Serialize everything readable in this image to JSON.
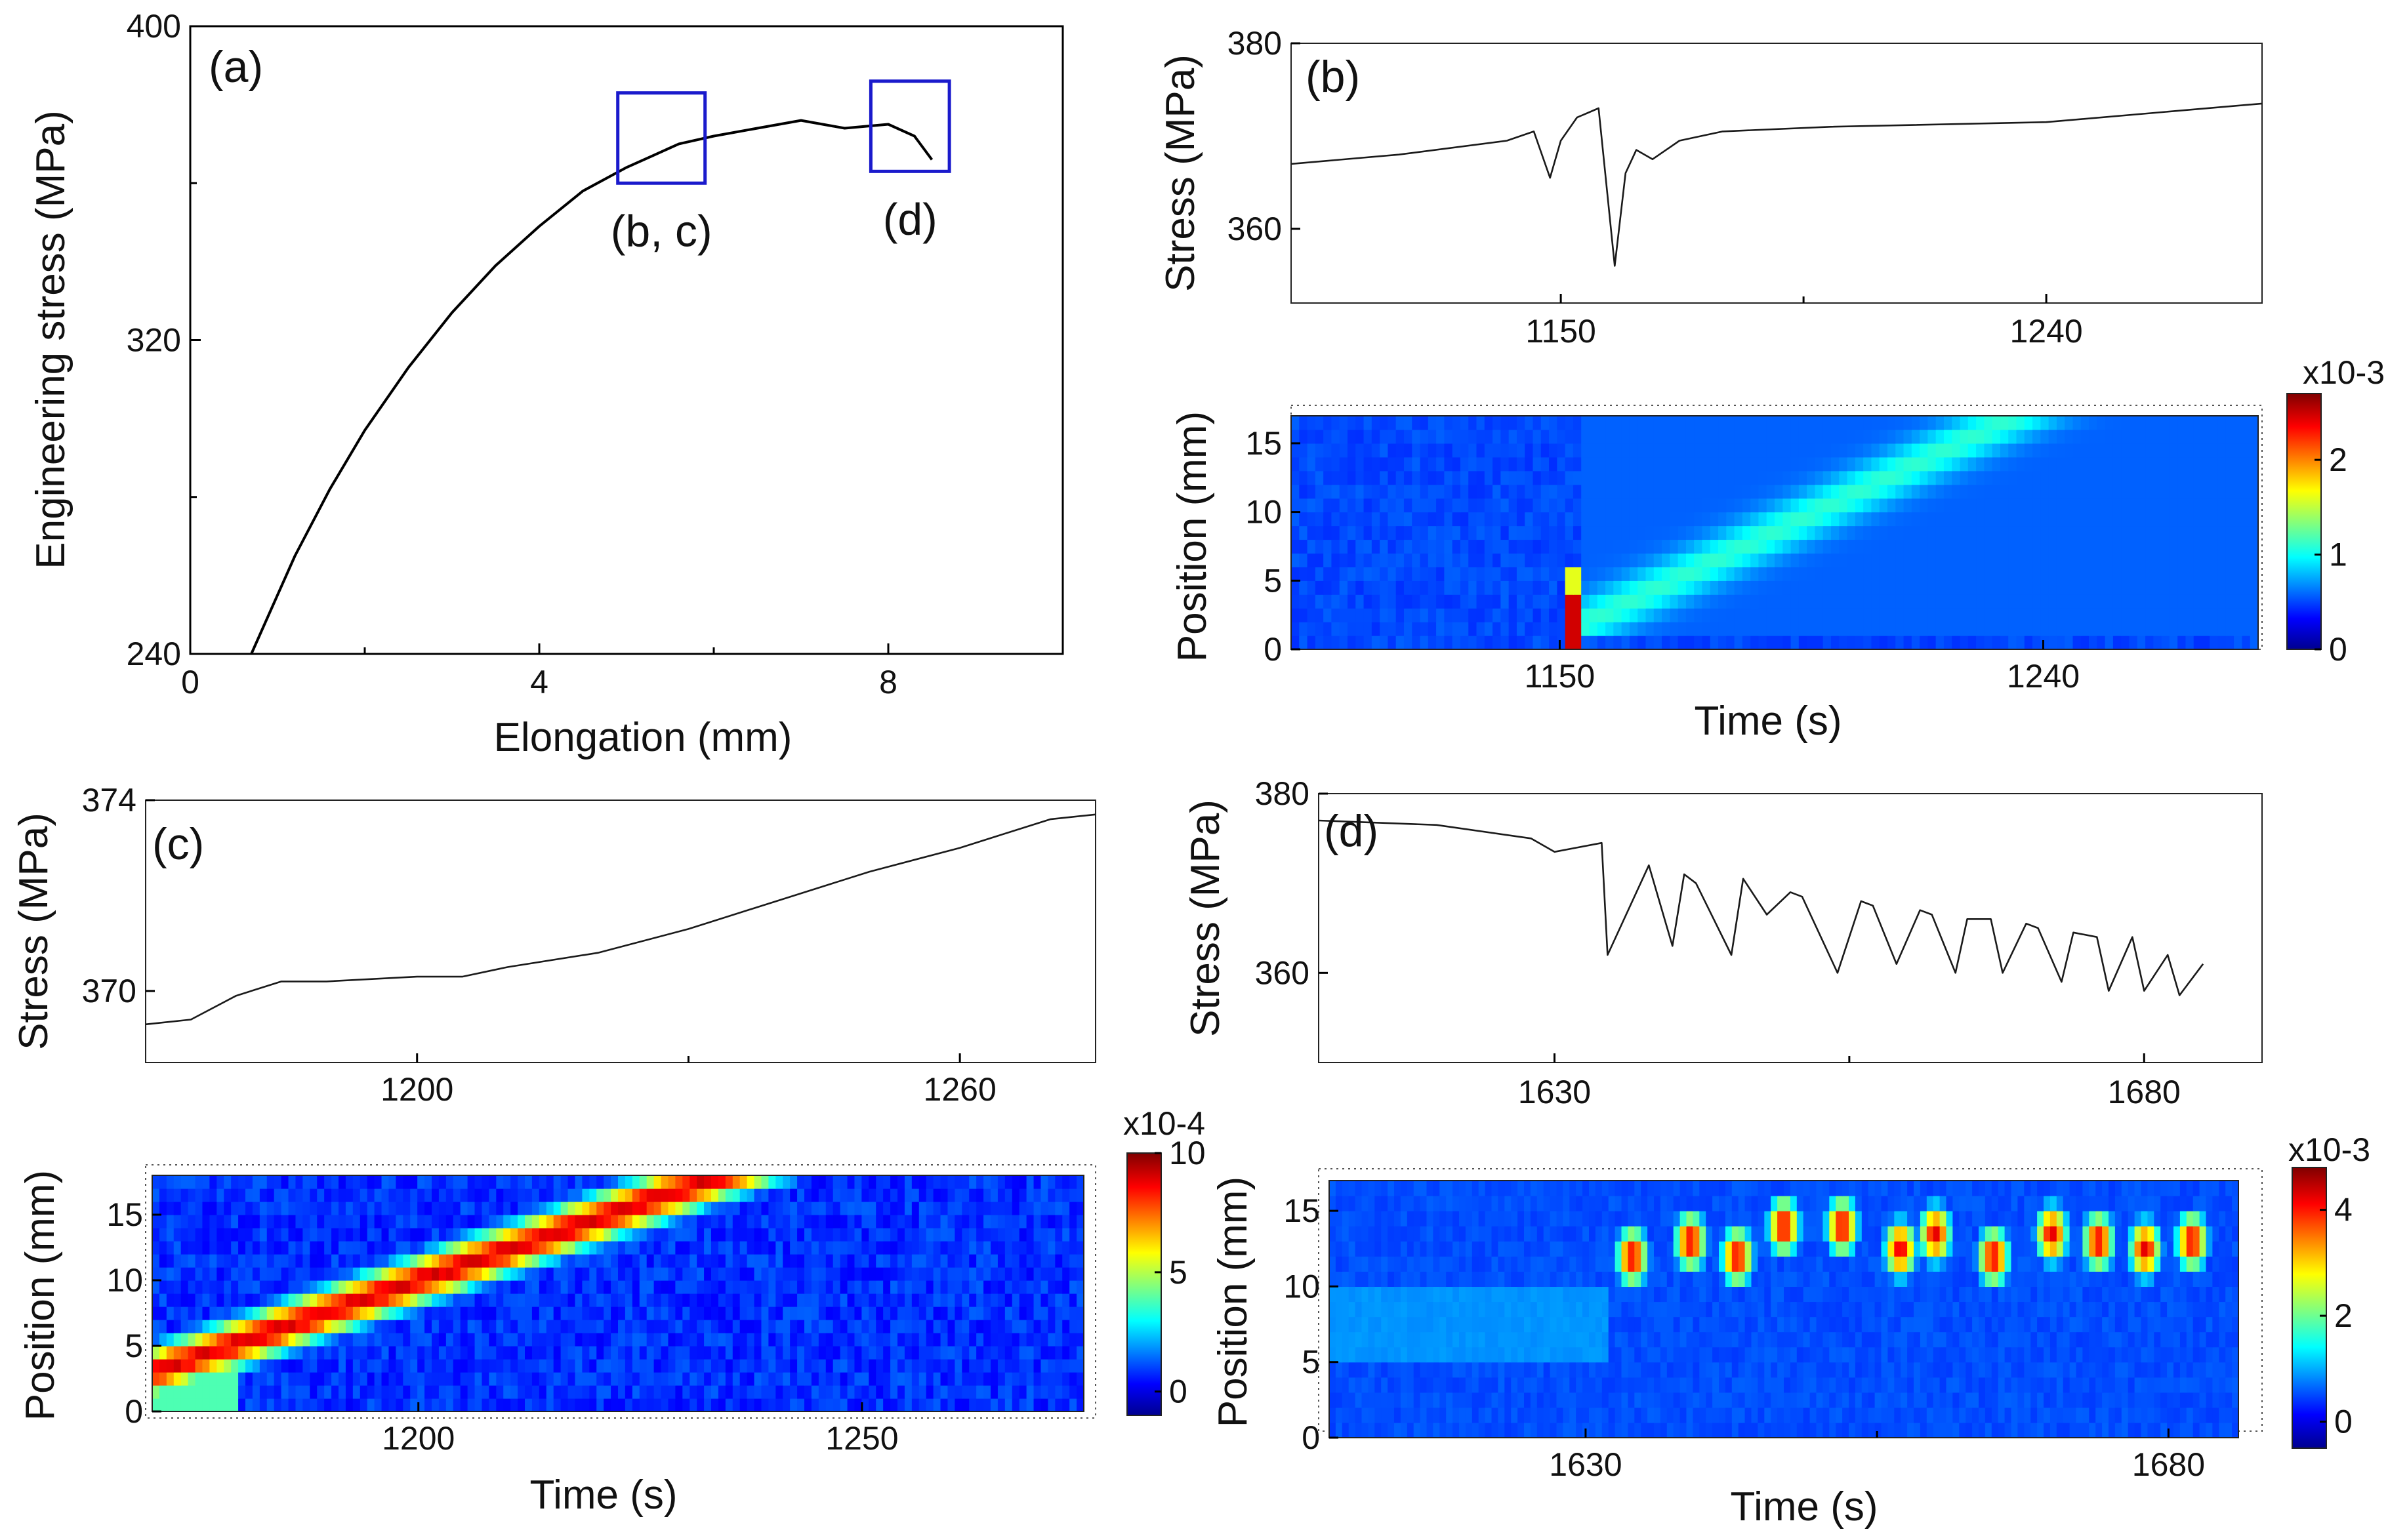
{
  "chart_data": [
    {
      "id": "a",
      "type": "line",
      "panel_label": "(a)",
      "xlabel": "Elongation (mm)",
      "ylabel": "Engineering stress (MPa)",
      "xlim": [
        0,
        10
      ],
      "ylim": [
        240,
        400
      ],
      "xticks": [
        0,
        4,
        8
      ],
      "yticks": [
        240,
        320,
        400
      ],
      "x": [
        0.7,
        0.9,
        1.2,
        1.6,
        2.0,
        2.5,
        3.0,
        3.5,
        4.0,
        4.5,
        5.0,
        5.3,
        5.6,
        6.0,
        6.5,
        7.0,
        7.5,
        8.0,
        8.3,
        8.5
      ],
      "y": [
        240,
        250,
        265,
        282,
        297,
        313,
        327,
        339,
        349,
        358,
        364,
        367,
        370,
        372,
        374,
        376,
        374,
        375,
        372,
        366
      ],
      "annotations": [
        {
          "label": "(b, c)",
          "x_range": [
            4.9,
            5.9
          ],
          "y_range": [
            360,
            383
          ]
        },
        {
          "label": "(d)",
          "x_range": [
            7.8,
            8.7
          ],
          "y_range": [
            363,
            386
          ]
        }
      ]
    },
    {
      "id": "b_top",
      "type": "line",
      "panel_label": "(b)",
      "ylabel": "Stress (MPa)",
      "xlim": [
        1100,
        1280
      ],
      "ylim": [
        352,
        380
      ],
      "xticks": [
        1150,
        1240
      ],
      "yticks": [
        360,
        380
      ],
      "x": [
        1100,
        1120,
        1140,
        1145,
        1148,
        1150,
        1153,
        1157,
        1160,
        1162,
        1164,
        1167,
        1172,
        1180,
        1200,
        1240,
        1280
      ],
      "y": [
        367,
        368,
        369.5,
        370.5,
        365.5,
        369.5,
        372,
        373,
        356,
        366,
        368.5,
        367.5,
        369.5,
        370.5,
        371,
        371.5,
        373.5
      ]
    },
    {
      "id": "b_map",
      "type": "heatmap",
      "xlabel": "Time (s)",
      "ylabel": "Position (mm)",
      "xlim": [
        1100,
        1280
      ],
      "ylim": [
        0,
        17
      ],
      "xticks": [
        1150,
        1240
      ],
      "yticks": [
        0,
        5,
        10,
        15
      ],
      "colorbar": {
        "exponent": "x10-3",
        "ticks": [
          "0",
          "1",
          "2"
        ],
        "range": [
          0,
          2.7
        ]
      },
      "description_series": [
        {
          "name": "band start time (s)",
          "values": [
            1155,
            1235
          ]
        },
        {
          "name": "band start position (mm)",
          "values": [
            2,
            17
          ]
        }
      ]
    },
    {
      "id": "c_top",
      "type": "line",
      "panel_label": "(c)",
      "ylabel": "Stress (MPa)",
      "xlim": [
        1170,
        1275
      ],
      "ylim": [
        368.5,
        374
      ],
      "xticks": [
        1200,
        1260
      ],
      "yticks": [
        370,
        374
      ],
      "x": [
        1170,
        1175,
        1180,
        1185,
        1190,
        1200,
        1205,
        1210,
        1220,
        1230,
        1240,
        1250,
        1260,
        1270,
        1275
      ],
      "y": [
        369.3,
        369.4,
        369.9,
        370.2,
        370.2,
        370.3,
        370.3,
        370.5,
        370.8,
        371.3,
        371.9,
        372.5,
        373.0,
        373.6,
        373.7
      ]
    },
    {
      "id": "c_map",
      "type": "heatmap",
      "xlabel": "Time (s)",
      "ylabel": "Position (mm)",
      "xlim": [
        1170,
        1275
      ],
      "ylim": [
        0,
        18
      ],
      "xticks": [
        1200,
        1250
      ],
      "yticks": [
        0,
        5,
        10,
        15
      ],
      "colorbar": {
        "exponent": "x10-4",
        "ticks": [
          "0",
          "5",
          "10"
        ],
        "range": [
          -1,
          10
        ]
      },
      "description_series": [
        {
          "name": "band time (s)",
          "values": [
            1170,
            1230
          ]
        },
        {
          "name": "band position (mm)",
          "values": [
            3,
            17
          ]
        }
      ]
    },
    {
      "id": "d_top",
      "type": "line",
      "panel_label": "(d)",
      "ylabel": "Stress (MPa)",
      "xlim": [
        1610,
        1690
      ],
      "ylim": [
        350,
        380
      ],
      "xticks": [
        1630,
        1680
      ],
      "yticks": [
        360,
        380
      ],
      "x": [
        1610,
        1620,
        1628,
        1630,
        1632,
        1634,
        1634.5,
        1638,
        1640,
        1641,
        1642,
        1645,
        1646,
        1648,
        1650,
        1651,
        1654,
        1656,
        1657,
        1659,
        1661,
        1662,
        1664,
        1665,
        1667,
        1668,
        1670,
        1671,
        1673,
        1674,
        1676,
        1677,
        1679,
        1680,
        1682,
        1683,
        1685
      ],
      "y": [
        377,
        376.5,
        375,
        373.5,
        374,
        374.5,
        362,
        372,
        363,
        371,
        370,
        362,
        370.5,
        366.5,
        369,
        368.5,
        360,
        368,
        367.5,
        361,
        367,
        366.5,
        360,
        366,
        366,
        360,
        365.5,
        365,
        359,
        364.5,
        364,
        358,
        364,
        358,
        362,
        357.5,
        361
      ]
    },
    {
      "id": "d_map",
      "type": "heatmap",
      "xlabel": "Time (s)",
      "ylabel": "Position (mm)",
      "xlim": [
        1608,
        1686
      ],
      "ylim": [
        0,
        17
      ],
      "xticks": [
        1630,
        1680
      ],
      "yticks": [
        0,
        5,
        10,
        15
      ],
      "colorbar": {
        "exponent": "x10-3",
        "ticks": [
          "0",
          "2",
          "4"
        ],
        "range": [
          -0.5,
          4.8
        ]
      },
      "description_series": [
        {
          "name": "burst times (s)",
          "values": [
            1634,
            1639,
            1643,
            1647,
            1652,
            1657,
            1660,
            1665,
            1670,
            1674,
            1678,
            1682
          ]
        },
        {
          "name": "burst positions (mm)",
          "values": [
            12,
            13,
            12,
            14,
            14,
            12.5,
            13.5,
            12,
            13.5,
            13,
            12.5,
            13
          ]
        }
      ]
    }
  ]
}
